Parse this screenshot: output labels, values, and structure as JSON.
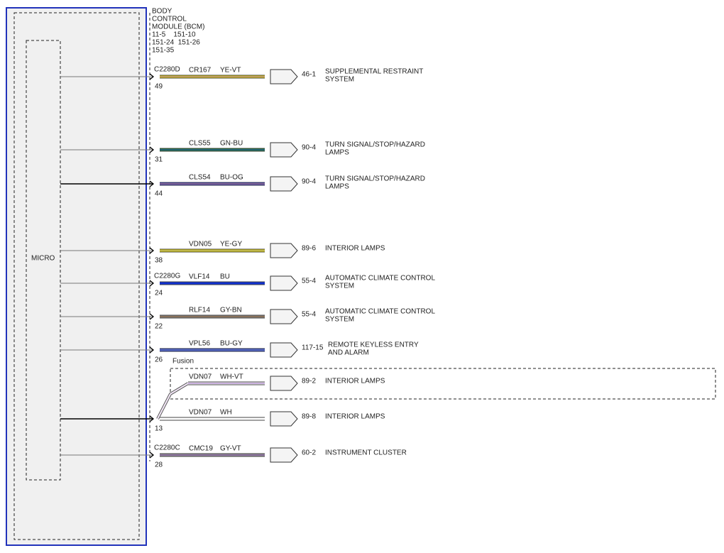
{
  "module": {
    "lines": [
      "BODY",
      "CONTROL",
      "MODULE (BCM)",
      "11-5    151-10",
      "151-24  151-26",
      "151-35"
    ],
    "micro": "MICRO"
  },
  "fusion_label": "Fusion",
  "wires": [
    {
      "connector": "C2280D",
      "circuit": "CR167",
      "color": "YE-VT",
      "pin": "49",
      "dest_pin": "46-1",
      "dest": [
        "SUPPLEMENTAL RESTRAINT",
        "SYSTEM"
      ]
    },
    {
      "circuit": "CLS55",
      "color": "GN-BU",
      "pin": "31",
      "dest_pin": "90-4",
      "dest": [
        "TURN SIGNAL/STOP/HAZARD",
        "LAMPS"
      ]
    },
    {
      "circuit": "CLS54",
      "color": "BU-OG",
      "pin": "44",
      "dest_pin": "90-4",
      "dest": [
        "TURN SIGNAL/STOP/HAZARD",
        "LAMPS"
      ]
    },
    {
      "circuit": "VDN05",
      "color": "YE-GY",
      "pin": "38",
      "dest_pin": "89-6",
      "dest": [
        "INTERIOR LAMPS"
      ]
    },
    {
      "connector": "C2280G",
      "circuit": "VLF14",
      "color": "BU",
      "pin": "24",
      "dest_pin": "55-4",
      "dest": [
        "AUTOMATIC CLIMATE CONTROL",
        "SYSTEM"
      ]
    },
    {
      "circuit": "RLF14",
      "color": "GY-BN",
      "pin": "22",
      "dest_pin": "55-4",
      "dest": [
        "AUTOMATIC CLIMATE CONTROL",
        "SYSTEM"
      ]
    },
    {
      "circuit": "VPL56",
      "color": "BU-GY",
      "pin": "26",
      "dest_pin": "117-15",
      "dest": [
        "REMOTE KEYLESS ENTRY",
        "AND ALARM"
      ]
    },
    {
      "circuit": "VDN07",
      "color": "WH-VT",
      "dest_pin": "89-2",
      "dest": [
        "INTERIOR LAMPS"
      ]
    },
    {
      "circuit": "VDN07",
      "color": "WH",
      "pin": "13",
      "dest_pin": "89-8",
      "dest": [
        "INTERIOR LAMPS"
      ]
    },
    {
      "connector": "C2280C",
      "circuit": "CMC19",
      "color": "GY-VT",
      "pin": "28",
      "dest_pin": "60-2",
      "dest": [
        "INSTRUMENT CLUSTER"
      ]
    }
  ]
}
